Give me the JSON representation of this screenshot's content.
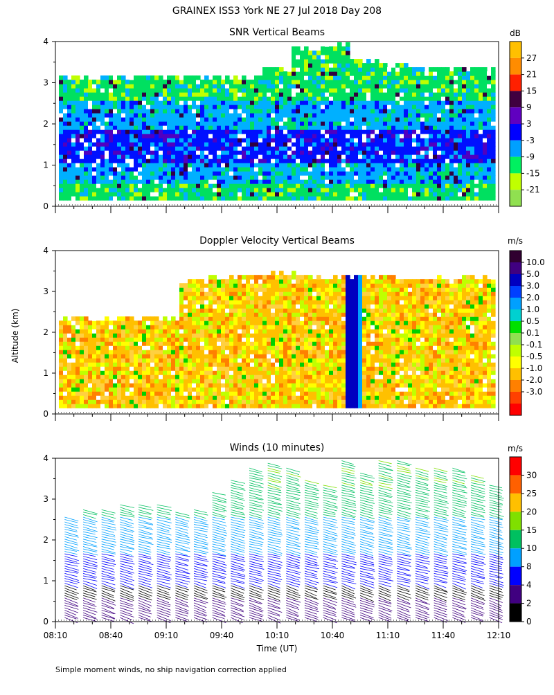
{
  "figure": {
    "title": "GRAINEX ISS3 York NE  27 Jul 2018 Day 208",
    "y_axis_label": "Altitude (km)",
    "x_axis_label": "Time (UT)",
    "footnote": "Simple moment winds, no ship navigation correction applied",
    "x_tick_labels": [
      "08:10",
      "08:40",
      "09:10",
      "09:40",
      "10:10",
      "10:40",
      "11:10",
      "11:40",
      "12:10"
    ],
    "y_tick_labels": [
      "0",
      "1",
      "2",
      "3",
      "4"
    ]
  },
  "chart_data": [
    {
      "type": "heatmap",
      "title": "SNR Vertical Beams",
      "xlabel": "",
      "ylabel": "Altitude (km)",
      "x_range": [
        "08:10",
        "12:10"
      ],
      "ylim": [
        0,
        4
      ],
      "colorbar": {
        "unit": "dB",
        "levels": [
          "27",
          "21",
          "15",
          "9",
          "3",
          "-3",
          "-9",
          "-15",
          "-21"
        ],
        "colors": [
          "#ffc000",
          "#ff8c00",
          "#ff2000",
          "#400040",
          "#6000c0",
          "#0000ff",
          "#00a0ff",
          "#00f060",
          "#c0ff00",
          "#90e050"
        ]
      },
      "data_top_km": [
        3.1,
        3.1,
        3.1,
        3.1,
        3.1,
        3.1,
        3.1,
        3.3,
        3.8,
        3.9,
        3.5,
        3.4,
        3.3,
        3.3,
        3.3
      ],
      "band_values_db": [
        {
          "alt_km": [
            0.1,
            0.5
          ],
          "value": -15
        },
        {
          "alt_km": [
            0.5,
            1.0
          ],
          "value": -9
        },
        {
          "alt_km": [
            1.0,
            1.8
          ],
          "value": -3
        },
        {
          "alt_km": [
            1.8,
            2.5
          ],
          "value": -9
        },
        {
          "alt_km": [
            2.5,
            3.1
          ],
          "value": -15
        }
      ]
    },
    {
      "type": "heatmap",
      "title": "Doppler Velocity Vertical Beams",
      "xlabel": "",
      "ylabel": "Altitude (km)",
      "x_range": [
        "08:10",
        "12:10"
      ],
      "ylim": [
        0,
        4
      ],
      "colorbar": {
        "unit": "m/s",
        "levels": [
          "10.0",
          "5.0",
          "3.0",
          "2.0",
          "1.0",
          "0.5",
          "0.1",
          "-0.1",
          "-0.5",
          "-1.0",
          "-2.0",
          "-3.0"
        ],
        "colors": [
          "#300030",
          "#400080",
          "#0000c0",
          "#0040ff",
          "#00a0ff",
          "#00d0d0",
          "#00e000",
          "#90e050",
          "#c0ff00",
          "#ffff00",
          "#ffc000",
          "#ff8000",
          "#ff4000",
          "#ff0000"
        ]
      },
      "notable_feature": {
        "time": "10:50",
        "alt_km": [
          0.2,
          3.9
        ],
        "value_ms": 3.0
      }
    },
    {
      "type": "scatter",
      "subtype": "wind_barbs",
      "title": "Winds (10 minutes)",
      "xlabel": "Time (UT)",
      "ylabel": "Altitude (km)",
      "x": [
        "08:15",
        "08:25",
        "08:35",
        "08:45",
        "08:55",
        "09:05",
        "09:15",
        "09:25",
        "09:35",
        "09:45",
        "09:55",
        "10:05",
        "10:15",
        "10:25",
        "10:35",
        "10:45",
        "10:55",
        "11:05",
        "11:15",
        "11:25",
        "11:35",
        "11:45",
        "11:55",
        "12:05"
      ],
      "top_km": [
        2.6,
        2.8,
        2.8,
        2.9,
        2.9,
        2.9,
        2.7,
        2.8,
        3.2,
        3.5,
        3.8,
        3.9,
        3.8,
        3.5,
        3.4,
        4.0,
        3.7,
        4.0,
        4.0,
        3.8,
        3.8,
        3.8,
        3.6,
        3.4
      ],
      "colorbar": {
        "unit": "m/s",
        "levels": [
          "30",
          "25",
          "20",
          "15",
          "10",
          "8",
          "4",
          "2",
          "0"
        ],
        "colors": [
          "#ff0000",
          "#ff6000",
          "#ffc000",
          "#80e000",
          "#00c060",
          "#00a0ff",
          "#0000ff",
          "#400080",
          "#000000"
        ]
      }
    }
  ]
}
